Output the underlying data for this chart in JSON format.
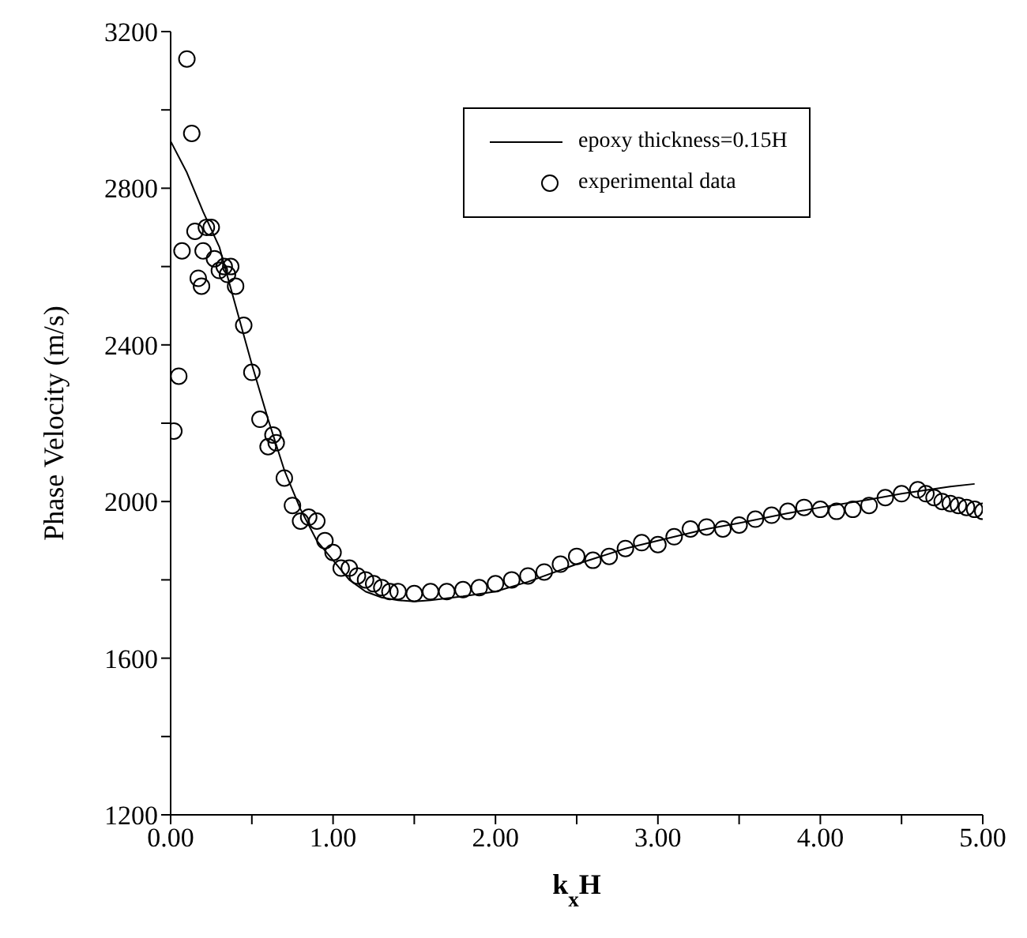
{
  "chart_data": {
    "type": "line",
    "xlabel": "k$_{x}$H",
    "ylabel": "Phase Velocity (m/s)",
    "xlim": [
      0,
      5
    ],
    "ylim": [
      1200,
      3200
    ],
    "xticks": [
      {
        "value": 0,
        "label": "0.00"
      },
      {
        "value": 0.5,
        "label": null
      },
      {
        "value": 1,
        "label": "1.00"
      },
      {
        "value": 1.5,
        "label": null
      },
      {
        "value": 2,
        "label": "2.00"
      },
      {
        "value": 2.5,
        "label": null
      },
      {
        "value": 3,
        "label": "3.00"
      },
      {
        "value": 3.5,
        "label": null
      },
      {
        "value": 4,
        "label": "4.00"
      },
      {
        "value": 4.5,
        "label": null
      },
      {
        "value": 5,
        "label": "5.00"
      }
    ],
    "yticks": [
      1200,
      {
        "value": 1400,
        "label": null
      },
      1600,
      {
        "value": 1800,
        "label": null
      },
      2000,
      {
        "value": 2200,
        "label": null
      },
      2400,
      {
        "value": 2600,
        "label": null
      },
      2800,
      {
        "value": 3000,
        "label": null
      },
      3200
    ],
    "grid": false,
    "legend": "top right",
    "series": [
      {
        "name": "epoxy thickness=0.15H",
        "type": "line",
        "marker": "none",
        "line_style": "solid",
        "color": "#000000",
        "x": [
          0,
          0.1,
          0.2,
          0.3,
          0.4,
          0.5,
          0.6,
          0.7,
          0.8,
          0.9,
          1.0,
          1.1,
          1.2,
          1.3,
          1.4,
          1.5,
          1.6,
          1.8,
          2.0,
          2.2,
          2.5,
          2.8,
          3.0,
          3.3,
          3.5,
          3.8,
          4.0,
          4.3,
          4.5,
          4.8,
          4.95
        ],
        "values": [
          2920,
          2840,
          2740,
          2650,
          2500,
          2350,
          2210,
          2080,
          1980,
          1900,
          1850,
          1800,
          1770,
          1755,
          1748,
          1745,
          1748,
          1758,
          1770,
          1795,
          1840,
          1880,
          1900,
          1930,
          1945,
          1970,
          1985,
          2005,
          2020,
          2038,
          2045
        ]
      },
      {
        "name": "experimental data",
        "type": "scatter",
        "marker": "circle",
        "color": "#000000",
        "x": [
          0.02,
          0.05,
          0.07,
          0.1,
          0.13,
          0.15,
          0.17,
          0.19,
          0.2,
          0.22,
          0.25,
          0.27,
          0.3,
          0.33,
          0.35,
          0.37,
          0.4,
          0.45,
          0.5,
          0.55,
          0.6,
          0.63,
          0.65,
          0.7,
          0.75,
          0.8,
          0.85,
          0.9,
          0.95,
          1.0,
          1.05,
          1.1,
          1.15,
          1.2,
          1.25,
          1.3,
          1.35,
          1.4,
          1.5,
          1.6,
          1.7,
          1.8,
          1.9,
          2.0,
          2.1,
          2.2,
          2.3,
          2.4,
          2.5,
          2.6,
          2.7,
          2.8,
          2.9,
          3.0,
          3.1,
          3.2,
          3.3,
          3.4,
          3.5,
          3.6,
          3.7,
          3.8,
          3.9,
          4.0,
          4.1,
          4.2,
          4.3,
          4.4,
          4.5,
          4.6,
          4.65,
          4.7,
          4.75,
          4.8,
          4.85,
          4.9,
          4.95,
          5.0
        ],
        "values": [
          2180,
          2320,
          2640,
          3130,
          2940,
          2690,
          2570,
          2550,
          2640,
          2700,
          2700,
          2620,
          2590,
          2600,
          2580,
          2600,
          2550,
          2450,
          2330,
          2210,
          2140,
          2170,
          2150,
          2060,
          1990,
          1950,
          1960,
          1950,
          1900,
          1870,
          1830,
          1830,
          1810,
          1800,
          1790,
          1780,
          1770,
          1770,
          1765,
          1770,
          1770,
          1775,
          1780,
          1790,
          1800,
          1810,
          1820,
          1840,
          1860,
          1850,
          1860,
          1880,
          1895,
          1890,
          1910,
          1930,
          1935,
          1930,
          1940,
          1955,
          1965,
          1975,
          1985,
          1980,
          1975,
          1980,
          1990,
          2010,
          2020,
          2030,
          2020,
          2010,
          2000,
          1995,
          1990,
          1985,
          1980,
          1975
        ]
      }
    ]
  }
}
